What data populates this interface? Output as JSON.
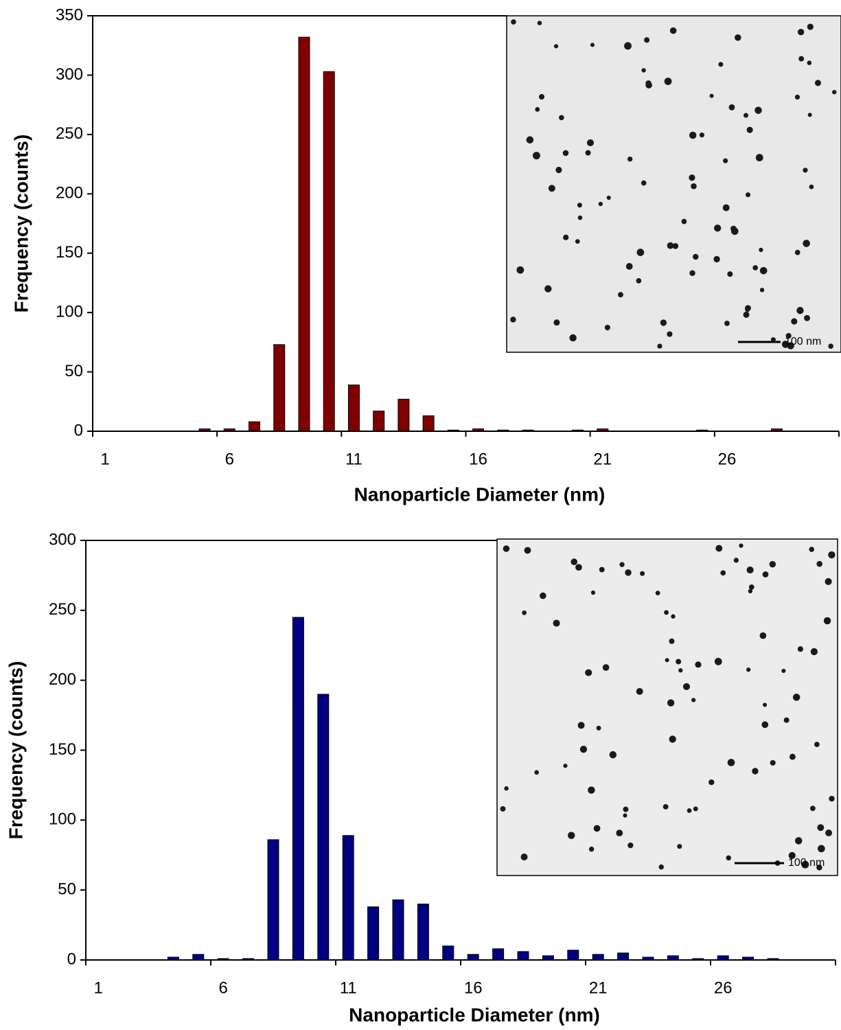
{
  "chart_data": [
    {
      "type": "bar",
      "x_label": "Nanoparticle Diameter (nm)",
      "y_label": "Frequency (counts)",
      "categories": [
        "1",
        null,
        null,
        null,
        null,
        "6",
        null,
        null,
        null,
        null,
        "11",
        null,
        null,
        null,
        null,
        "16",
        null,
        null,
        null,
        null,
        "21",
        null,
        null,
        null,
        null,
        "26",
        null,
        null,
        null,
        null
      ],
      "values": [
        0,
        0,
        0,
        0,
        2,
        2,
        8,
        73,
        332,
        303,
        39,
        17,
        27,
        13,
        1,
        2,
        1,
        1,
        0,
        1,
        2,
        0,
        0,
        0,
        1,
        0,
        0,
        2,
        0,
        0
      ],
      "color": "#800000",
      "ylim": [
        0,
        350
      ],
      "yticks": [
        0,
        50,
        100,
        150,
        200,
        250,
        300,
        350
      ],
      "inset_scale_label": "100 nm"
    },
    {
      "type": "bar",
      "x_label": "Nanoparticle Diameter (nm)",
      "y_label": "Frequency (counts)",
      "categories": [
        "1",
        null,
        null,
        null,
        null,
        "6",
        null,
        null,
        null,
        null,
        "11",
        null,
        null,
        null,
        null,
        "16",
        null,
        null,
        null,
        null,
        "21",
        null,
        null,
        null,
        null,
        "26",
        null,
        null,
        null,
        null
      ],
      "values": [
        0,
        0,
        0,
        2,
        4,
        1,
        1,
        86,
        245,
        190,
        89,
        38,
        43,
        40,
        10,
        4,
        8,
        6,
        3,
        7,
        4,
        5,
        2,
        3,
        1,
        3,
        2,
        1,
        0,
        0
      ],
      "color": "#000080",
      "ylim": [
        0,
        300
      ],
      "yticks": [
        0,
        50,
        100,
        150,
        200,
        250,
        300
      ],
      "inset_scale_label": "100 nm"
    }
  ]
}
